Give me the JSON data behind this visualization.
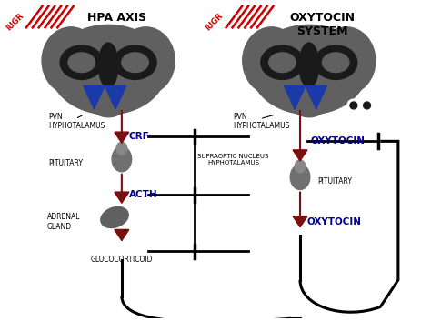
{
  "bg_color": "#ffffff",
  "left_title": "HPA AXIS",
  "right_title": "OXYTOCIN\nSYSTEM",
  "iugr_left": "IUGR",
  "iugr_right": "IUGR",
  "left_labels": {
    "pvn": "PVN\nHYPHOTALAMUS",
    "pituitary": "PITUITARY",
    "adrenal": "ADRENAL\nGLAND",
    "glucocorticoid": "GLUCOCORTICOID",
    "crf": "CRF",
    "acth": "ACTH"
  },
  "right_labels": {
    "pvn": "PVN\nHYPHOTALAMUS",
    "supraoptic": "SUPRAOPTIC NUCLEUS\nHYPHOTALAMUS",
    "pituitary": "PITUITARY",
    "oxytocin_top": "OXYTOCIN",
    "oxytocin_bot": "OXYTOCIN"
  },
  "brain_color": "#606060",
  "dark_detail": "#1a1a1a",
  "blue_triangle_color": "#1a3aaa",
  "line_color": "#000000",
  "red_line_color": "#7a1010",
  "iugr_color": "#cc0000",
  "blue_label_color": "#00008b",
  "label_color": "#000000"
}
